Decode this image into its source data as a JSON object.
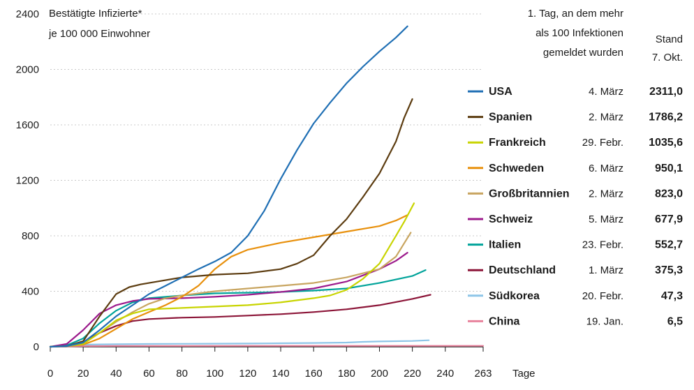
{
  "chart_data": {
    "type": "line",
    "title_lines": [
      "Bestätigte Infizierte*",
      "je 100 000 Einwohner"
    ],
    "xlabel": "Tage",
    "xlim": [
      0,
      263
    ],
    "ylim": [
      0,
      2400
    ],
    "x_ticks": [
      "0",
      "20",
      "40",
      "60",
      "80",
      "100",
      "120",
      "140",
      "160",
      "180",
      "200",
      "220",
      "240",
      "263"
    ],
    "y_ticks": [
      "0",
      "400",
      "800",
      "1200",
      "1600",
      "2000",
      "2400"
    ],
    "grid": "horizontal dotted",
    "legend_placement": "right",
    "legend_header_date": [
      "1. Tag, an dem mehr",
      "als 100 Infektionen",
      "gemeldet wurden"
    ],
    "legend_header_value": [
      "Stand",
      "7. Okt."
    ],
    "series": [
      {
        "name": "USA",
        "date": "4. März",
        "value_label": "2311,0",
        "color": "#1f6fb4",
        "points": [
          [
            0,
            0
          ],
          [
            10,
            5
          ],
          [
            20,
            30
          ],
          [
            30,
            120
          ],
          [
            40,
            220
          ],
          [
            50,
            300
          ],
          [
            60,
            380
          ],
          [
            70,
            440
          ],
          [
            80,
            500
          ],
          [
            90,
            560
          ],
          [
            100,
            615
          ],
          [
            110,
            680
          ],
          [
            120,
            800
          ],
          [
            130,
            980
          ],
          [
            140,
            1210
          ],
          [
            150,
            1420
          ],
          [
            160,
            1610
          ],
          [
            170,
            1760
          ],
          [
            180,
            1900
          ],
          [
            190,
            2020
          ],
          [
            200,
            2130
          ],
          [
            210,
            2230
          ],
          [
            217,
            2311
          ]
        ]
      },
      {
        "name": "Spanien",
        "date": "2. März",
        "value_label": "1786,2",
        "color": "#5c3c10",
        "points": [
          [
            0,
            0
          ],
          [
            10,
            5
          ],
          [
            20,
            40
          ],
          [
            30,
            220
          ],
          [
            40,
            380
          ],
          [
            48,
            430
          ],
          [
            55,
            450
          ],
          [
            65,
            470
          ],
          [
            80,
            500
          ],
          [
            100,
            520
          ],
          [
            120,
            530
          ],
          [
            140,
            560
          ],
          [
            150,
            600
          ],
          [
            160,
            660
          ],
          [
            170,
            800
          ],
          [
            180,
            920
          ],
          [
            190,
            1080
          ],
          [
            200,
            1250
          ],
          [
            210,
            1480
          ],
          [
            215,
            1650
          ],
          [
            220,
            1786
          ]
        ]
      },
      {
        "name": "Frankreich",
        "date": "29. Febr.",
        "value_label": "1035,6",
        "color": "#c8d400",
        "points": [
          [
            0,
            0
          ],
          [
            10,
            5
          ],
          [
            20,
            20
          ],
          [
            30,
            100
          ],
          [
            40,
            190
          ],
          [
            50,
            240
          ],
          [
            60,
            270
          ],
          [
            80,
            280
          ],
          [
            100,
            290
          ],
          [
            120,
            300
          ],
          [
            140,
            320
          ],
          [
            160,
            350
          ],
          [
            170,
            370
          ],
          [
            180,
            410
          ],
          [
            190,
            490
          ],
          [
            200,
            600
          ],
          [
            210,
            800
          ],
          [
            215,
            900
          ],
          [
            221,
            1035
          ]
        ]
      },
      {
        "name": "Schweden",
        "date": "6. März",
        "value_label": "950,1",
        "color": "#e8900c",
        "points": [
          [
            0,
            0
          ],
          [
            10,
            5
          ],
          [
            20,
            15
          ],
          [
            30,
            60
          ],
          [
            40,
            130
          ],
          [
            50,
            200
          ],
          [
            60,
            250
          ],
          [
            70,
            300
          ],
          [
            80,
            360
          ],
          [
            90,
            440
          ],
          [
            100,
            560
          ],
          [
            110,
            650
          ],
          [
            120,
            700
          ],
          [
            140,
            750
          ],
          [
            160,
            790
          ],
          [
            180,
            830
          ],
          [
            200,
            870
          ],
          [
            210,
            910
          ],
          [
            217,
            950
          ]
        ]
      },
      {
        "name": "Großbritannien",
        "date": "2. März",
        "value_label": "823,0",
        "color": "#c8a560",
        "points": [
          [
            0,
            0
          ],
          [
            10,
            5
          ],
          [
            20,
            20
          ],
          [
            30,
            100
          ],
          [
            40,
            180
          ],
          [
            50,
            250
          ],
          [
            60,
            310
          ],
          [
            70,
            350
          ],
          [
            80,
            370
          ],
          [
            100,
            400
          ],
          [
            120,
            420
          ],
          [
            140,
            440
          ],
          [
            160,
            460
          ],
          [
            180,
            500
          ],
          [
            200,
            560
          ],
          [
            210,
            650
          ],
          [
            219,
            823
          ]
        ]
      },
      {
        "name": "Schweiz",
        "date": "5. März",
        "value_label": "677,9",
        "color": "#9c1a8c",
        "points": [
          [
            0,
            0
          ],
          [
            10,
            20
          ],
          [
            20,
            120
          ],
          [
            30,
            240
          ],
          [
            40,
            300
          ],
          [
            50,
            330
          ],
          [
            60,
            345
          ],
          [
            80,
            350
          ],
          [
            100,
            360
          ],
          [
            120,
            375
          ],
          [
            140,
            395
          ],
          [
            160,
            420
          ],
          [
            180,
            470
          ],
          [
            200,
            560
          ],
          [
            210,
            620
          ],
          [
            217,
            678
          ]
        ]
      },
      {
        "name": "Italien",
        "date": "23. Febr.",
        "value_label": "552,7",
        "color": "#00a39a",
        "points": [
          [
            0,
            0
          ],
          [
            10,
            10
          ],
          [
            20,
            60
          ],
          [
            30,
            170
          ],
          [
            40,
            260
          ],
          [
            50,
            320
          ],
          [
            60,
            350
          ],
          [
            80,
            370
          ],
          [
            100,
            385
          ],
          [
            120,
            390
          ],
          [
            140,
            395
          ],
          [
            160,
            405
          ],
          [
            180,
            420
          ],
          [
            200,
            460
          ],
          [
            220,
            510
          ],
          [
            228,
            553
          ]
        ]
      },
      {
        "name": "Deutschland",
        "date": "1. März",
        "value_label": "375,3",
        "color": "#8c1538",
        "points": [
          [
            0,
            0
          ],
          [
            10,
            5
          ],
          [
            20,
            30
          ],
          [
            30,
            100
          ],
          [
            40,
            150
          ],
          [
            50,
            185
          ],
          [
            60,
            200
          ],
          [
            80,
            210
          ],
          [
            100,
            215
          ],
          [
            120,
            225
          ],
          [
            140,
            235
          ],
          [
            160,
            250
          ],
          [
            180,
            270
          ],
          [
            200,
            300
          ],
          [
            220,
            345
          ],
          [
            231,
            375
          ]
        ]
      },
      {
        "name": "Südkorea",
        "date": "20. Febr.",
        "value_label": "47,3",
        "color": "#8ec5e8",
        "points": [
          [
            0,
            0
          ],
          [
            10,
            8
          ],
          [
            20,
            15
          ],
          [
            40,
            18
          ],
          [
            60,
            20
          ],
          [
            80,
            21
          ],
          [
            100,
            22
          ],
          [
            120,
            23
          ],
          [
            140,
            25
          ],
          [
            160,
            27
          ],
          [
            180,
            30
          ],
          [
            190,
            35
          ],
          [
            200,
            38
          ],
          [
            220,
            42
          ],
          [
            230,
            47
          ]
        ]
      },
      {
        "name": "China",
        "date": "19. Jan.",
        "value_label": "6,5",
        "color": "#e8829c",
        "points": [
          [
            0,
            0
          ],
          [
            20,
            5
          ],
          [
            40,
            6
          ],
          [
            80,
            6.2
          ],
          [
            120,
            6.3
          ],
          [
            160,
            6.4
          ],
          [
            200,
            6.5
          ],
          [
            263,
            6.5
          ]
        ]
      }
    ]
  }
}
